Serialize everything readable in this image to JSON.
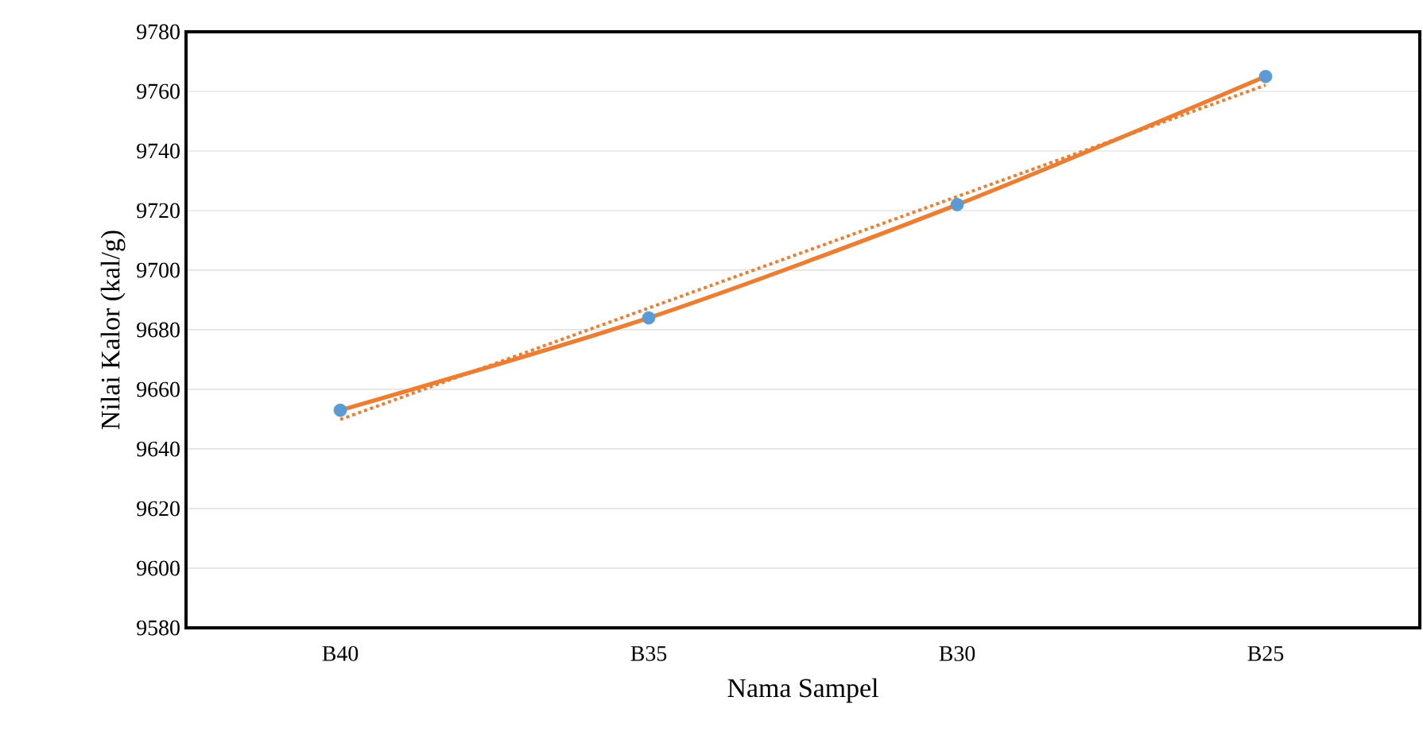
{
  "chart_data": {
    "type": "line",
    "xlabel": "Nama Sampel",
    "ylabel": "Nilai Kalor (kal/g)",
    "categories": [
      "B40",
      "B35",
      "B30",
      "B25"
    ],
    "series": [
      {
        "color": "#ed7d31",
        "values": [
          9653,
          9684,
          9722,
          9765
        ],
        "marker": "none",
        "line_style": "solid"
      },
      {
        "type": "scatter",
        "color": "#5b9bd5",
        "values": [
          9653,
          9684,
          9722,
          9765
        ],
        "marker": "circle"
      },
      {
        "color": "#ed7d31",
        "values": [
          9649.9,
          9687.3,
          9724.7,
          9762.1
        ],
        "marker": "none",
        "line_style": "dotted"
      }
    ],
    "ylim": [
      9580,
      9780
    ],
    "yticks": [
      9580,
      9600,
      9620,
      9640,
      9660,
      9680,
      9700,
      9720,
      9740,
      9760,
      9780
    ],
    "grid": "y"
  }
}
